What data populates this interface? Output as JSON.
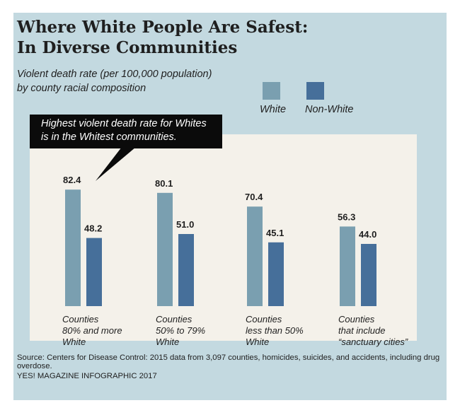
{
  "header": {
    "title_line1": "Where White People Are Safest:",
    "title_line2": "In Diverse Communities",
    "subtitle_line1": "Violent death rate (per 100,000 population)",
    "subtitle_line2": "by county racial composition"
  },
  "callout": {
    "line1": "Highest violent death rate for Whites",
    "line2": "is in the Whitest communities."
  },
  "footer": {
    "source": "Source: Centers for Disease Control: 2015 data from 3,097 counties, homicides, suicides, and accidents, including drug overdose.",
    "credit": "YES! MAGAZINE INFOGRAPHIC 2017"
  },
  "colors": {
    "card_bg": "#c3d9e0",
    "plot_bg": "#f4f1ea",
    "white_series": "#7a9fb0",
    "nonwhite_series": "#466f9a"
  },
  "chart_data": {
    "type": "bar",
    "title": "Where White People Are Safest: In Diverse Communities",
    "subtitle": "Violent death rate (per 100,000 population) by county racial composition",
    "categories": [
      [
        "Counties",
        "80% and more",
        "White"
      ],
      [
        "Counties",
        "50% to 79%",
        "White"
      ],
      [
        "Counties",
        "less than 50%",
        "White"
      ],
      [
        "Counties",
        "that include",
        "“sanctuary cities”"
      ]
    ],
    "series": [
      {
        "name": "White",
        "color": "#7a9fb0",
        "values": [
          82.4,
          80.1,
          70.4,
          56.3
        ],
        "labels": [
          "82.4",
          "80.1",
          "70.4",
          "56.3"
        ]
      },
      {
        "name": "Non-White",
        "color": "#466f9a",
        "values": [
          48.2,
          51.0,
          45.1,
          44.0
        ],
        "labels": [
          "48.2",
          "51.0",
          "45.1",
          "44.0"
        ]
      }
    ],
    "ylim": [
      0,
      100
    ],
    "legend_position": "top-right",
    "grid": false
  }
}
